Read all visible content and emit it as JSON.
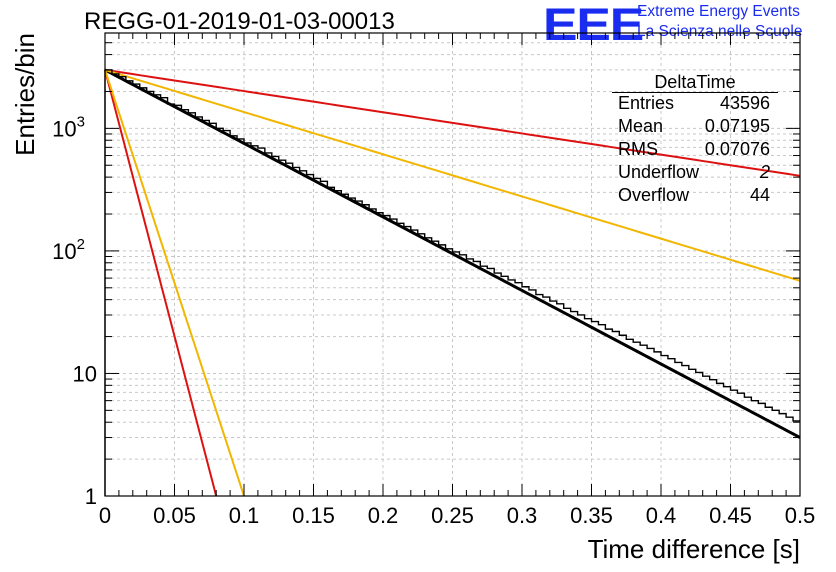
{
  "chart_data": {
    "type": "histogram",
    "title": "REGG-01-2019-01-03-00013",
    "xlabel": "Time difference [s]",
    "ylabel": "Entries/bin",
    "xlim": [
      0,
      0.5
    ],
    "ylim": [
      1,
      6000
    ],
    "yscale": "log",
    "grid": true,
    "x_ticks": [
      "0",
      "0.05",
      "0.1",
      "0.15",
      "0.2",
      "0.25",
      "0.3",
      "0.35",
      "0.4",
      "0.45",
      "0.5"
    ],
    "y_ticks": [
      "1",
      "10",
      "10^2",
      "10^3"
    ],
    "bin_width": 0.005,
    "histogram_counts": [
      3000,
      2780,
      2640,
      2440,
      2300,
      2140,
      2000,
      1880,
      1780,
      1580,
      1540,
      1420,
      1340,
      1240,
      1160,
      1100,
      1000,
      960,
      870,
      820,
      760,
      720,
      690,
      630,
      590,
      550,
      520,
      480,
      450,
      420,
      390,
      370,
      330,
      310,
      290,
      270,
      255,
      238,
      220,
      205,
      194,
      182,
      168,
      158,
      148,
      138,
      128,
      120,
      112,
      104,
      98,
      93,
      86,
      82,
      75,
      72,
      66,
      62,
      58,
      55,
      51,
      48,
      44,
      42,
      39,
      37,
      34,
      32,
      30,
      28,
      26.5,
      25,
      23,
      22,
      20.5,
      19,
      18,
      17,
      16,
      15,
      14,
      13.2,
      12.3,
      11.6,
      10.8,
      10.2,
      9.5,
      8.9,
      8.3,
      7.8,
      7.3,
      6.9,
      6.4,
      6.0,
      5.7,
      5.3,
      5.0,
      4.7,
      4.4,
      4.1
    ],
    "series": [
      {
        "name": "Exponential fit",
        "color": "#000000",
        "type": "line",
        "function": "exp",
        "start_value": 3000,
        "end_value": 3.0,
        "x_range": [
          0,
          0.5
        ]
      },
      {
        "name": "Red line (slow)",
        "color": "#dd1111",
        "type": "line",
        "function": "exp",
        "start_value": 3000,
        "end_value": 410,
        "x_range": [
          0,
          0.5
        ]
      },
      {
        "name": "Yellow line (slow)",
        "color": "#f2b600",
        "type": "line",
        "function": "exp",
        "start_value": 3000,
        "end_value": 57,
        "x_range": [
          0,
          0.5
        ]
      },
      {
        "name": "Red line (fast)",
        "color": "#dd1111",
        "type": "line",
        "function": "exp",
        "start_value": 3000,
        "end_value": 1,
        "x_range": [
          0,
          0.08
        ]
      },
      {
        "name": "Yellow line (fast)",
        "color": "#f2b600",
        "type": "line",
        "function": "exp",
        "start_value": 3000,
        "end_value": 1,
        "x_range": [
          0,
          0.1
        ]
      }
    ],
    "stats_box": {
      "title": "DeltaTime",
      "entries_label": "Entries",
      "entries": "43596",
      "mean_label": "Mean",
      "mean": "0.07195",
      "rms_label": "RMS",
      "rms": "0.07076",
      "underflow_label": "Underflow",
      "underflow": "2",
      "overflow_label": "Overflow",
      "overflow": "44"
    }
  },
  "logo": {
    "mark": "EEE",
    "line1": "Extreme Energy Events",
    "line2": "La Scienza nelle Scuole",
    "color": "#1a2cf0"
  }
}
